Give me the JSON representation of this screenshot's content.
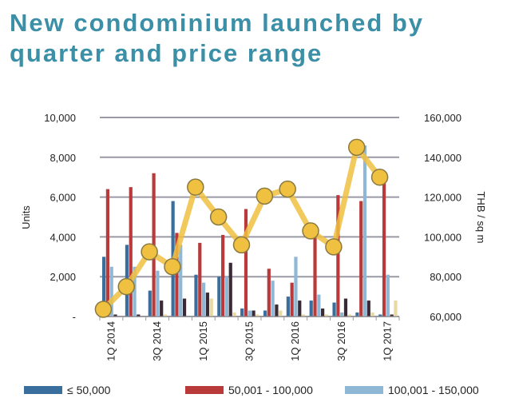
{
  "title_line1": "New condominium launched by",
  "title_line2": "quarter and price range",
  "chart_data": {
    "type": "bar",
    "categories": [
      "1Q 2014",
      "2Q 2014",
      "3Q 2014",
      "4Q 2014",
      "1Q 2015",
      "2Q 2015",
      "3Q 2015",
      "4Q 2015",
      "1Q 2016",
      "2Q 2016",
      "3Q 2016",
      "4Q 2016",
      "1Q 2017"
    ],
    "tick_labels": [
      "1Q 2014",
      "3Q 2014",
      "1Q 2015",
      "3Q 2015",
      "1Q 2016",
      "3Q 2016",
      "1Q 2017"
    ],
    "ylabel": "Units",
    "y2label": "THB / sq m",
    "ylim": [
      0,
      10000
    ],
    "y2lim": [
      60000,
      160000
    ],
    "yticks": [
      "-",
      "2,000",
      "4,000",
      "6,000",
      "8,000",
      "10,000"
    ],
    "y2ticks": [
      "60,000",
      "80,000",
      "100,000",
      "120,000",
      "140,000",
      "160,000"
    ],
    "grid": true,
    "legend_position": "bottom",
    "series": [
      {
        "name": "≤ 50,000",
        "color": "#3a6e9c",
        "values": [
          3000,
          3600,
          1300,
          5800,
          2100,
          2000,
          400,
          300,
          1000,
          800,
          700,
          200,
          100
        ]
      },
      {
        "name": "50,001 - 100,000",
        "color": "#b83a3a",
        "values": [
          6400,
          6500,
          7200,
          4200,
          3700,
          4100,
          5400,
          2400,
          1700,
          4600,
          6100,
          5800,
          6700
        ]
      },
      {
        "name": "100,001 - 150,000",
        "color": "#8fb8d6",
        "values": [
          2500,
          2500,
          2300,
          3600,
          1700,
          2000,
          300,
          1800,
          3000,
          1100,
          200,
          8600,
          2100
        ]
      },
      {
        "color": "#3a2a35",
        "values": [
          100,
          100,
          800,
          900,
          1200,
          2700,
          300,
          600,
          800,
          400,
          900,
          800,
          100
        ]
      },
      {
        "color": "#e8d9a0",
        "values": [
          0,
          0,
          100,
          0,
          900,
          200,
          100,
          300,
          100,
          100,
          100,
          200,
          800
        ]
      }
    ],
    "line": {
      "axis": "right",
      "color": "#f0c040",
      "values": [
        63600,
        75000,
        92500,
        85000,
        125000,
        110000,
        96000,
        120500,
        124000,
        103000,
        95000,
        145000,
        130000
      ]
    }
  }
}
